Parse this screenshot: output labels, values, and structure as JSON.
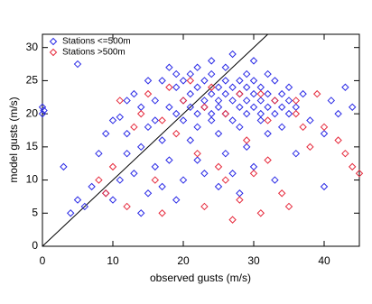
{
  "chart_data": {
    "type": "scatter",
    "x_label": "observed gusts (m/s)",
    "y_label": "model gusts (m/s)",
    "xlim": [
      0,
      45
    ],
    "ylim": [
      0,
      32
    ],
    "xticks": [
      0,
      10,
      20,
      30,
      40
    ],
    "yticks": [
      0,
      5,
      10,
      15,
      20,
      25,
      30
    ],
    "grid": false,
    "legend": "upper-left",
    "series": [
      {
        "name": "Stations <=500m",
        "color": "#2a2ae6",
        "x": [
          0,
          0,
          0.2,
          5,
          3,
          4,
          6,
          5,
          7,
          8,
          9,
          10,
          11,
          12,
          12,
          13,
          13,
          14,
          14,
          15,
          15,
          16,
          16,
          17,
          17,
          17,
          18,
          18,
          18,
          19,
          19,
          19,
          19,
          20,
          20,
          20,
          20,
          21,
          21,
          21,
          21,
          22,
          22,
          22,
          22,
          22,
          23,
          23,
          23,
          23,
          24,
          24,
          24,
          24,
          24,
          25,
          25,
          25,
          25,
          25,
          26,
          26,
          26,
          26,
          26,
          27,
          27,
          27,
          27,
          27,
          28,
          28,
          28,
          28,
          28,
          29,
          29,
          29,
          29,
          29,
          30,
          30,
          30,
          30,
          30,
          31,
          31,
          31,
          31,
          32,
          32,
          32,
          32,
          33,
          33,
          33,
          33,
          34,
          34,
          34,
          35,
          35,
          35,
          36,
          36,
          37,
          38,
          40,
          40,
          41,
          42,
          43,
          44,
          16,
          15,
          12,
          11,
          10,
          14,
          9
        ],
        "values": [
          20,
          21,
          20.5,
          27.5,
          12,
          5,
          6,
          7,
          9,
          14,
          8,
          19,
          19.5,
          17,
          22,
          11,
          23,
          21,
          5,
          25,
          18,
          19,
          22,
          25,
          16,
          9,
          27,
          21,
          13,
          20,
          24,
          26,
          7,
          22,
          19,
          25,
          10,
          23,
          21,
          26,
          16,
          20,
          24,
          18,
          27,
          13,
          21,
          25,
          22,
          11,
          20,
          23,
          26,
          19,
          28,
          22,
          24,
          21,
          17,
          9,
          20,
          25,
          23,
          27,
          14,
          22,
          19,
          24,
          29,
          11,
          21,
          25,
          23,
          18,
          8,
          22,
          26,
          20,
          24,
          15,
          21,
          23,
          25,
          28,
          12,
          22,
          20,
          24,
          19,
          23,
          21,
          26,
          17,
          22,
          20,
          25,
          10,
          23,
          21,
          18,
          22,
          24,
          20,
          21,
          14,
          23,
          19,
          17,
          9,
          22,
          20,
          24,
          21,
          12,
          8,
          14,
          10,
          7,
          15,
          17
        ]
      },
      {
        "name": "Stations >500m",
        "color": "#e62a3c",
        "x": [
          8,
          9,
          10,
          11,
          12,
          13,
          14,
          15,
          16,
          17,
          17,
          18,
          19,
          20,
          21,
          22,
          23,
          23,
          24,
          25,
          26,
          26,
          27,
          28,
          28,
          29,
          30,
          31,
          32,
          32,
          33,
          34,
          35,
          36,
          37,
          38,
          39,
          40,
          42,
          43,
          44,
          45,
          36,
          31
        ],
        "values": [
          10,
          8,
          12,
          22,
          6,
          18,
          20,
          23,
          10,
          5,
          19,
          24,
          17,
          22,
          25,
          14,
          6,
          21,
          24,
          12,
          20,
          10,
          4,
          23,
          7,
          16,
          11,
          5,
          19,
          13,
          22,
          8,
          6,
          20,
          18,
          15,
          23,
          18,
          16,
          14,
          12,
          11,
          22,
          23
        ]
      }
    ]
  }
}
